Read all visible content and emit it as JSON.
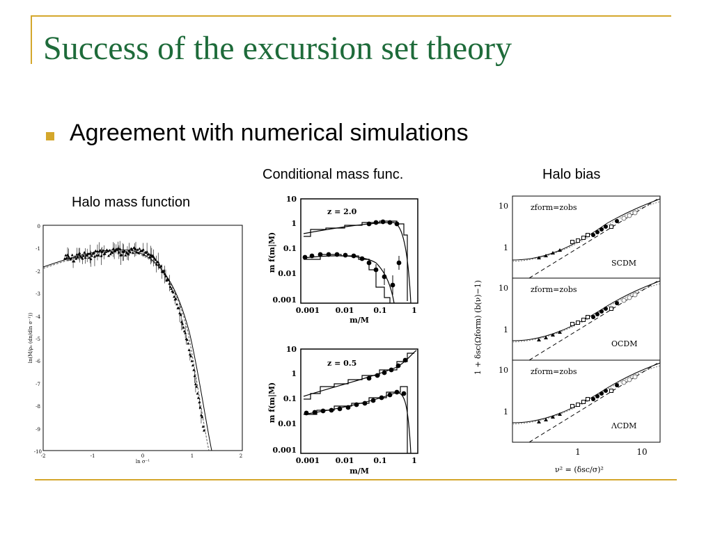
{
  "slide": {
    "title": "Success of the excursion set theory",
    "bullet": "Agreement with numerical simulations",
    "captions": {
      "halo_mass_function": "Halo mass function",
      "conditional_mass_func": "Conditional mass func.",
      "halo_bias": "Halo bias"
    }
  },
  "colors": {
    "title": "#1e6b3a",
    "accent": "#d4a72c"
  },
  "plots": {
    "hmf": {
      "ylabel": "ln(M/ρ₀ (dn/dln σ⁻¹))",
      "xlabel": "ln σ⁻¹",
      "xticks": [
        "-2",
        "-1",
        "0",
        "1",
        "2"
      ],
      "yticks": [
        "0",
        "-1",
        "-2",
        "-3",
        "-4",
        "-5",
        "-6",
        "-7",
        "-8",
        "-9",
        "-10"
      ]
    },
    "cmf_top": {
      "label": "z = 2.0",
      "ylabel": "m f(m|M)",
      "xlabel": "m/M",
      "yticks": [
        "10",
        "1",
        "0.1",
        "0.01",
        "0.001"
      ],
      "xticks": [
        "0.001",
        "0.01",
        "0.1",
        "1"
      ]
    },
    "cmf_bottom": {
      "label": "z = 0.5",
      "ylabel": "m f(m|M)",
      "xlabel": "m/M",
      "yticks": [
        "10",
        "1",
        "0.1",
        "0.01",
        "0.001"
      ],
      "xticks": [
        "0.001",
        "0.01",
        "0.1",
        "1"
      ]
    },
    "bias": {
      "ylabel": "1 + δsc(Ωform) (b(ν)−1)",
      "xlabel": "ν² = (δsc/σ)²",
      "xticks": [
        "1",
        "10"
      ],
      "panels": [
        {
          "header": "zform=zobs",
          "model": "SCDM",
          "yticks": [
            "10",
            "1"
          ]
        },
        {
          "header": "zform=zobs",
          "model": "OCDM",
          "yticks": [
            "10",
            "1"
          ]
        },
        {
          "header": "zform=zobs",
          "model": "ΛCDM",
          "yticks": [
            "10",
            "1"
          ]
        }
      ]
    }
  }
}
